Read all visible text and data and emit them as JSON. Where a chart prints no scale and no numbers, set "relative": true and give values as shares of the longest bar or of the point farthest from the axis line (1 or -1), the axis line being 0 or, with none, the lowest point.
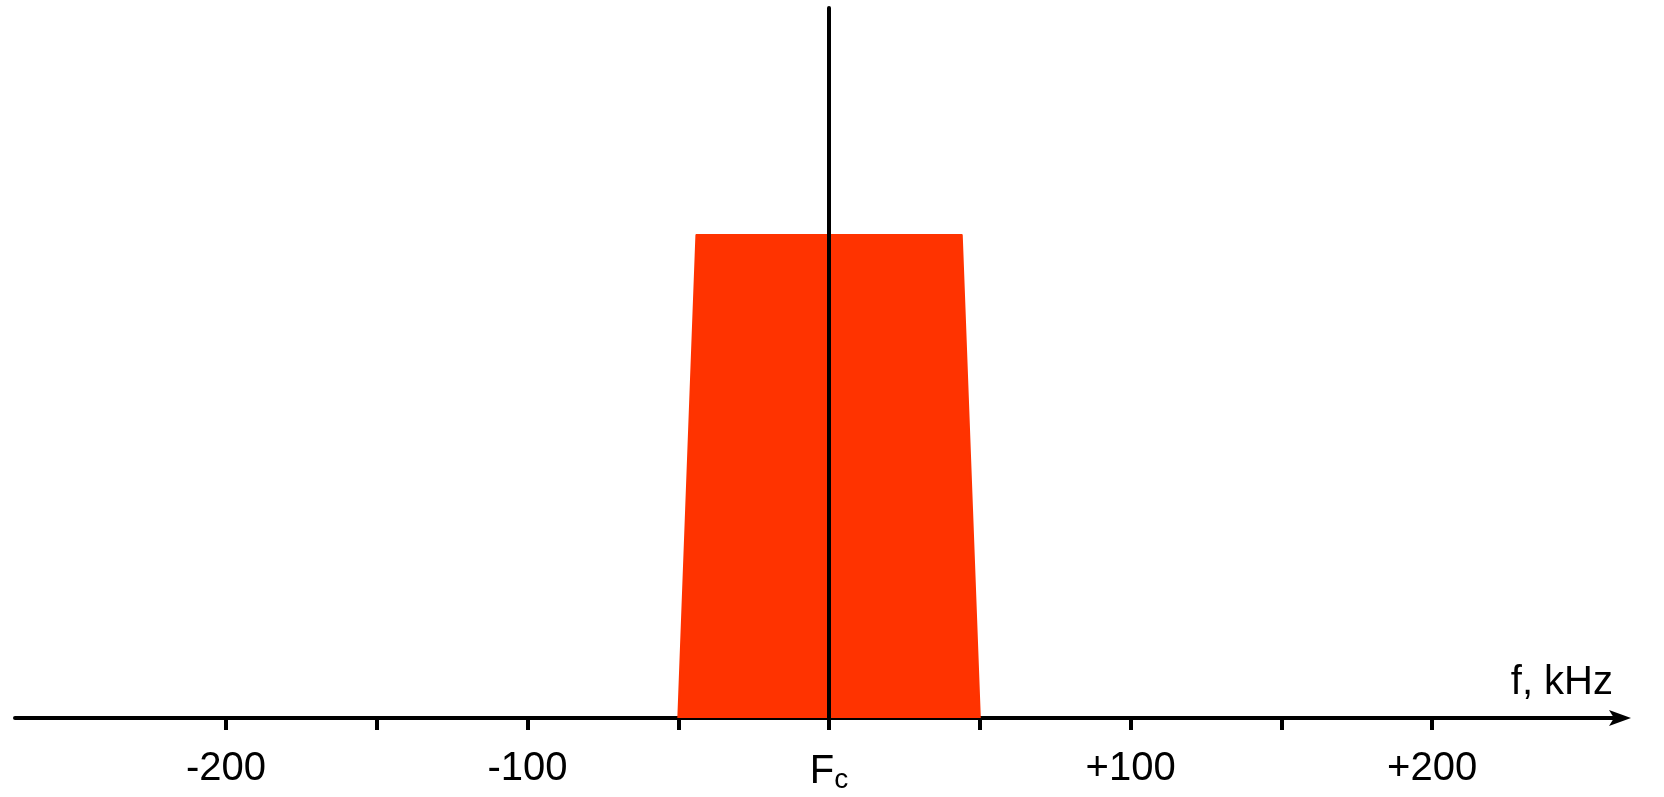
{
  "chart_data": {
    "type": "area",
    "relative": true,
    "xlabel": "f, kHz",
    "x": [
      -50,
      -44,
      44,
      50
    ],
    "series": [
      {
        "color": "#ff3300",
        "values": [
          0,
          1,
          1,
          0
        ]
      }
    ],
    "xlim": [
      -270,
      260
    ],
    "xticks": [
      {
        "value": -200,
        "label": "-200"
      },
      {
        "value": -150,
        "label": null
      },
      {
        "value": -100,
        "label": "-100"
      },
      {
        "value": -50,
        "label": null
      },
      {
        "value": 0,
        "label": "F$_{c}$"
      },
      {
        "value": 50,
        "label": null
      },
      {
        "value": 100,
        "label": "+100"
      },
      {
        "value": 150,
        "label": null
      },
      {
        "value": 200,
        "label": "+200"
      }
    ],
    "line_style": "solid"
  }
}
